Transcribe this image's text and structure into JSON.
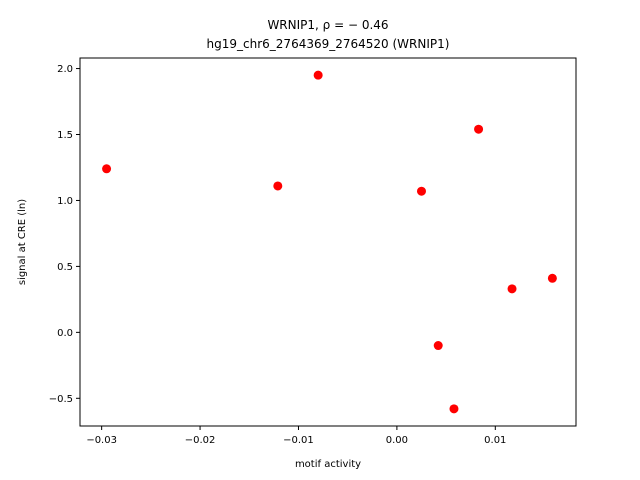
{
  "chart_data": {
    "type": "scatter",
    "title_line1": "WRNIP1, ρ = − 0.46",
    "title_line2": "hg19_chr6_2764369_2764520 (WRNIP1)",
    "xlabel": "motif activity",
    "ylabel": "signal at CRE (ln)",
    "xlim": [
      -0.0322,
      0.0182
    ],
    "ylim": [
      -0.71,
      2.08
    ],
    "x_ticks": [
      {
        "value": -0.03,
        "label": "−0.03"
      },
      {
        "value": -0.02,
        "label": "−0.02"
      },
      {
        "value": -0.01,
        "label": "−0.01"
      },
      {
        "value": 0.0,
        "label": "0.00"
      },
      {
        "value": 0.01,
        "label": "0.01"
      }
    ],
    "y_ticks": [
      {
        "value": -0.5,
        "label": "−0.5"
      },
      {
        "value": 0.0,
        "label": "0.0"
      },
      {
        "value": 0.5,
        "label": "0.5"
      },
      {
        "value": 1.0,
        "label": "1.0"
      },
      {
        "value": 1.5,
        "label": "1.5"
      },
      {
        "value": 2.0,
        "label": "2.0"
      }
    ],
    "point_color": "#ff0000",
    "grid": false,
    "points": [
      {
        "x": -0.0295,
        "y": 1.24
      },
      {
        "x": -0.0121,
        "y": 1.11
      },
      {
        "x": -0.008,
        "y": 1.95
      },
      {
        "x": 0.0025,
        "y": 1.07
      },
      {
        "x": 0.0042,
        "y": -0.1
      },
      {
        "x": 0.0058,
        "y": -0.58
      },
      {
        "x": 0.0083,
        "y": 1.54
      },
      {
        "x": 0.0117,
        "y": 0.33
      },
      {
        "x": 0.0158,
        "y": 0.41
      }
    ]
  }
}
